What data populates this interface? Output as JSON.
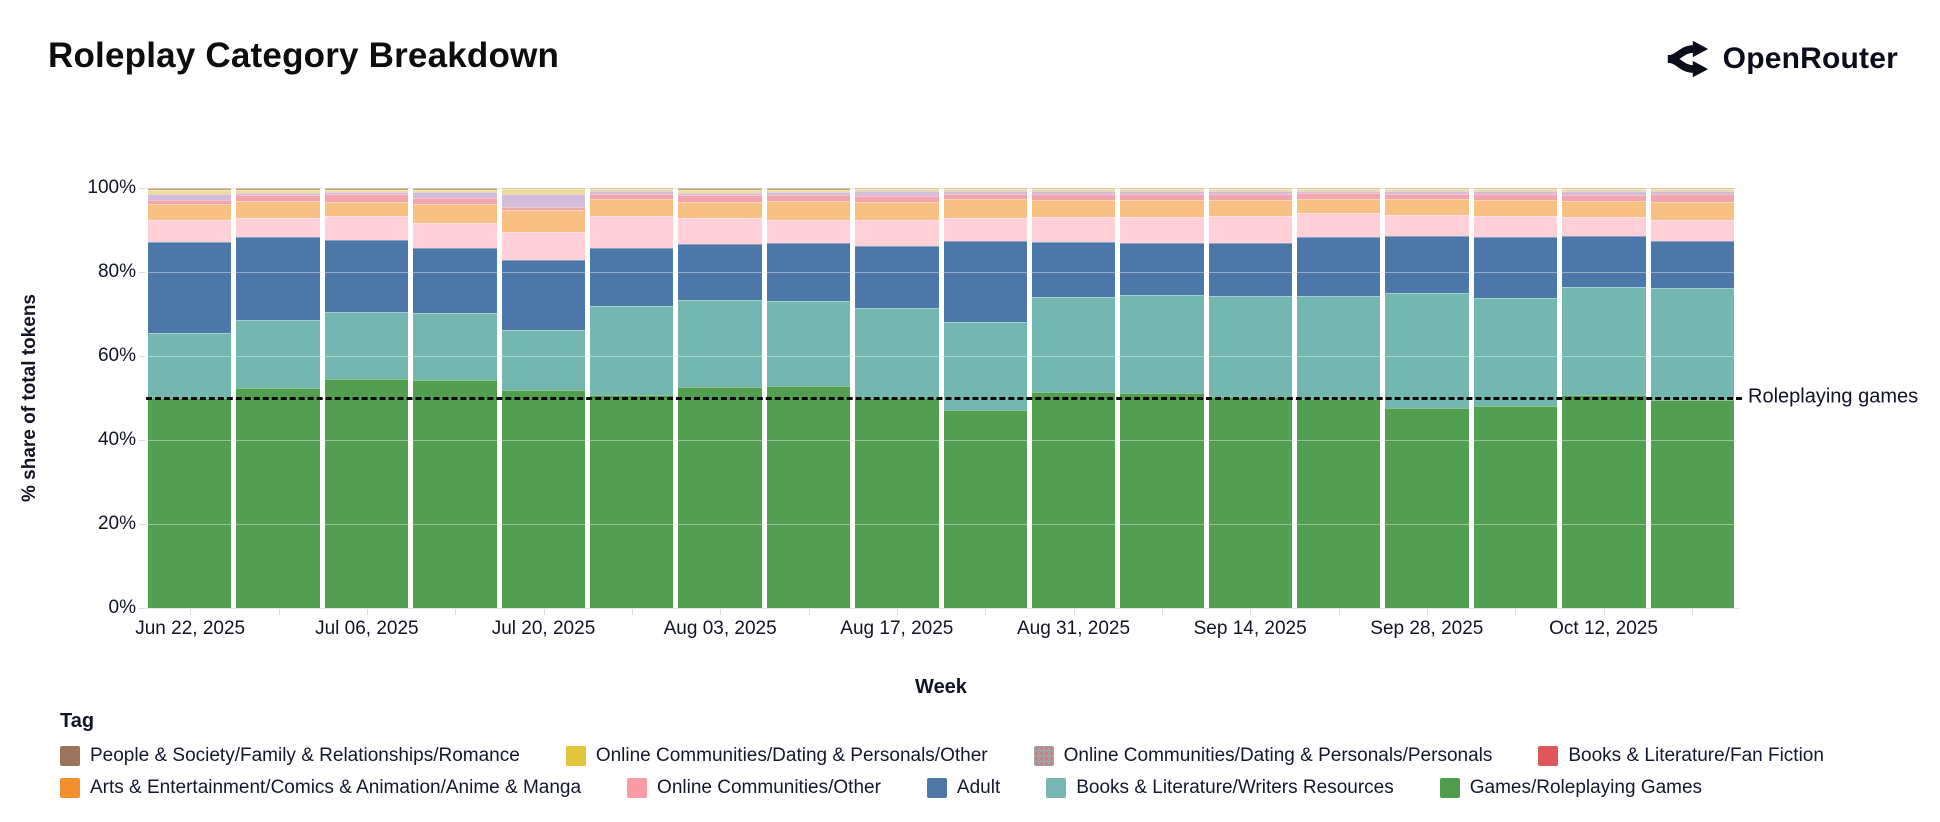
{
  "header": {
    "title": "Roleplay Category Breakdown",
    "logo_text": "OpenRouter",
    "logo_icon": "openrouter-split-arrows-icon"
  },
  "chart_data": {
    "type": "bar",
    "stacked": true,
    "normalized_percent": true,
    "title": "Roleplay Category Breakdown",
    "xlabel": "Week",
    "ylabel": "% share of total tokens",
    "ylim": [
      0,
      100
    ],
    "ytick_labels": [
      "0%",
      "20%",
      "40%",
      "60%",
      "80%",
      "100%"
    ],
    "grid": true,
    "categories": [
      "Jun 22, 2025",
      "",
      "Jul 06, 2025",
      "",
      "Jul 20, 2025",
      "",
      "Aug 03, 2025",
      "",
      "Aug 17, 2025",
      "",
      "Aug 31, 2025",
      "",
      "Sep 14, 2025",
      "",
      "Sep 28, 2025",
      "",
      "Oct 12, 2025",
      ""
    ],
    "x_tick_labels_shown": [
      "Jun 22, 2025",
      "Jul 06, 2025",
      "Jul 20, 2025",
      "Aug 03, 2025",
      "Aug 17, 2025",
      "Aug 31, 2025",
      "Sep 14, 2025",
      "Sep 28, 2025",
      "Oct 12, 2025"
    ],
    "series": [
      {
        "key": "games",
        "name": "Games/Roleplaying Games",
        "legend_color": "#4f9d4b",
        "bar_color": "#539f51",
        "pattern": false,
        "values": [
          50.0,
          52.5,
          54.5,
          54.3,
          51.9,
          50.8,
          52.6,
          52.9,
          50.0,
          47.1,
          51.5,
          51.1,
          50.2,
          49.7,
          47.6,
          48.1,
          50.7,
          49.5
        ]
      },
      {
        "key": "writers",
        "name": "Books & Literature/Writers Resources",
        "legend_color": "#76b7b2",
        "bar_color": "#74b6b0",
        "pattern": false,
        "values": [
          15.4,
          16.0,
          16.0,
          15.9,
          14.3,
          21.1,
          20.7,
          20.2,
          21.5,
          21.1,
          22.6,
          23.4,
          24.1,
          24.6,
          27.3,
          25.8,
          25.7,
          26.6
        ]
      },
      {
        "key": "adult",
        "name": "Adult",
        "legend_color": "#4e79a7",
        "bar_color": "#4b77a9",
        "pattern": false,
        "values": [
          21.8,
          19.8,
          17.1,
          15.5,
          16.7,
          13.8,
          13.4,
          13.9,
          14.8,
          19.2,
          13.1,
          12.4,
          12.6,
          14.0,
          13.7,
          14.5,
          12.2,
          11.3
        ]
      },
      {
        "key": "oc_other",
        "name": "Online Communities/Other",
        "legend_color": "#fb9ba7",
        "bar_color": "#ffd0d8",
        "pattern": false,
        "values": [
          5.2,
          4.6,
          5.7,
          5.9,
          6.6,
          7.6,
          6.1,
          5.5,
          6.1,
          5.5,
          5.9,
          6.1,
          6.4,
          5.7,
          5.0,
          4.9,
          4.5,
          5.0
        ]
      },
      {
        "key": "anime",
        "name": "Arts & Entertainment/Comics & Animation/Anime & Manga",
        "legend_color": "#f28e2b",
        "bar_color": "#f8c083",
        "pattern": false,
        "values": [
          3.7,
          4.0,
          3.4,
          4.6,
          5.2,
          4.0,
          3.8,
          4.4,
          4.2,
          4.4,
          4.0,
          4.1,
          3.9,
          3.5,
          3.8,
          3.9,
          3.9,
          4.3
        ]
      },
      {
        "key": "fanfic",
        "name": "Books & Literature/Fan Fiction",
        "legend_color": "#e05759",
        "bar_color": "#f2a5ae",
        "pattern": true,
        "values": [
          1.0,
          1.5,
          1.8,
          1.5,
          0.8,
          1.4,
          1.7,
          1.4,
          1.6,
          1.4,
          1.5,
          1.5,
          1.4,
          1.3,
          1.3,
          1.4,
          1.4,
          1.8
        ]
      },
      {
        "key": "personals",
        "name": "Online Communities/Dating & Personals/Personals",
        "legend_color": "#a49ea7",
        "bar_color": "#d2bed8",
        "pattern": true,
        "values": [
          1.6,
          0.5,
          0.5,
          1.3,
          3.2,
          0.6,
          0.6,
          0.7,
          1.0,
          0.6,
          0.6,
          0.6,
          0.6,
          0.5,
          0.6,
          0.6,
          0.9,
          0.7
        ]
      },
      {
        "key": "dating_other",
        "name": "Online Communities/Dating & Personals/Other",
        "legend_color": "#e2c53e",
        "bar_color": "#f0dc95",
        "pattern": true,
        "values": [
          0.8,
          0.7,
          0.6,
          0.6,
          1.0,
          0.4,
          0.7,
          0.6,
          0.5,
          0.4,
          0.5,
          0.5,
          0.5,
          0.4,
          0.4,
          0.5,
          0.4,
          0.5
        ]
      },
      {
        "key": "romance",
        "name": "People & Society/Family & Relationships/Romance",
        "legend_color": "#9c755f",
        "bar_color": "#bfa18c",
        "pattern": false,
        "values": [
          0.5,
          0.4,
          0.4,
          0.4,
          0.3,
          0.3,
          0.4,
          0.4,
          0.3,
          0.3,
          0.3,
          0.3,
          0.3,
          0.3,
          0.3,
          0.3,
          0.3,
          0.3
        ]
      }
    ],
    "annotation": {
      "label": "Roleplaying games",
      "y_percent": 50,
      "line_style": "dashed",
      "line_color": "#0c0c0c"
    },
    "legend_title": "Tag",
    "legend_position": "bottom",
    "legend_rows": [
      [
        "romance",
        "dating_other",
        "personals",
        "fanfic"
      ],
      [
        "anime",
        "oc_other",
        "adult",
        "writers",
        "games"
      ]
    ]
  }
}
